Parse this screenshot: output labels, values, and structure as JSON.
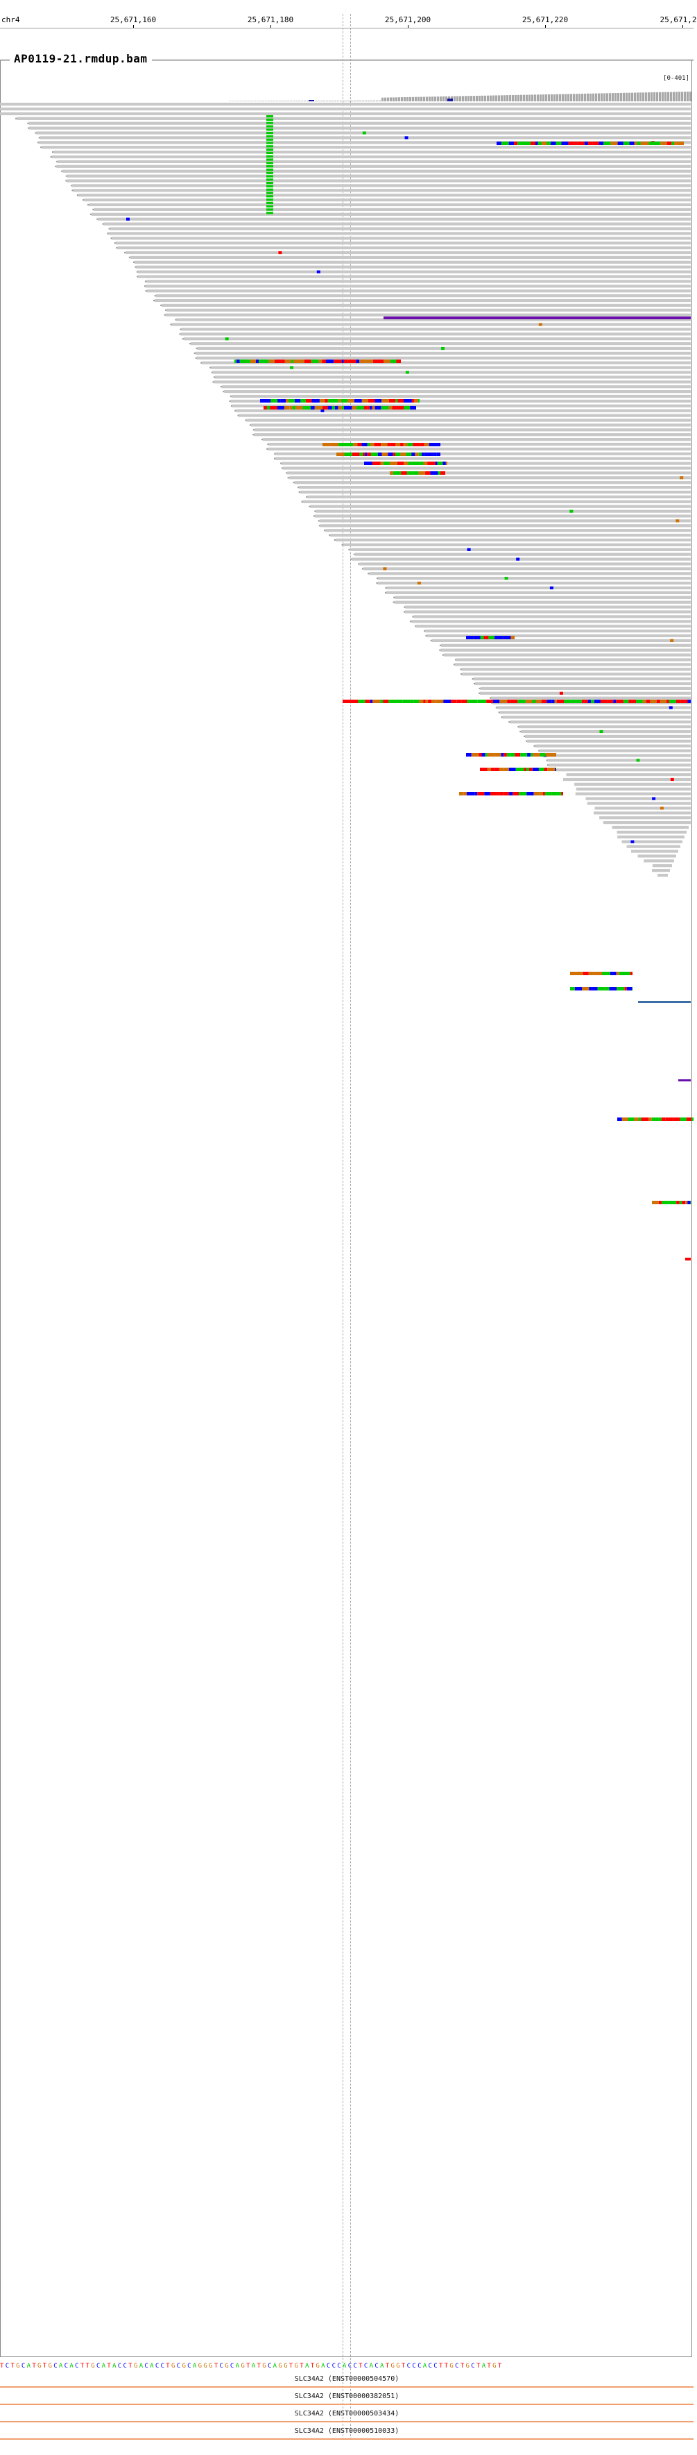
{
  "ruler": {
    "chromosome": "chr4",
    "ticks": [
      "25,671,160",
      "25,671,180",
      "25,671,200",
      "25,671,220",
      "25,671,2"
    ]
  },
  "track": {
    "title": "AP0119-21.rmdup.bam",
    "scale": "[0-401]"
  },
  "sequence": "TCTGCATGTGCACACTTGCATACCTGACACCTGCGCAGGGTCGCAGTATGCAGGTGTATGACCCACCTCACATGGTCCCACCTTGCTGCTATGT",
  "genes": [
    {
      "label": "SLC34A2 (ENST00000504570)"
    },
    {
      "label": "SLC34A2 (ENST00000382051)"
    },
    {
      "label": "SLC34A2 (ENST00000503434)"
    },
    {
      "label": "SLC34A2 (ENST00000510033)"
    }
  ],
  "colors": {
    "read": "#c8c8c8",
    "A": "#00cc00",
    "C": "#0000ff",
    "G": "#d17105",
    "T": "#ff0000",
    "insertion": "#6a0dad",
    "gene": "#f0a070"
  }
}
